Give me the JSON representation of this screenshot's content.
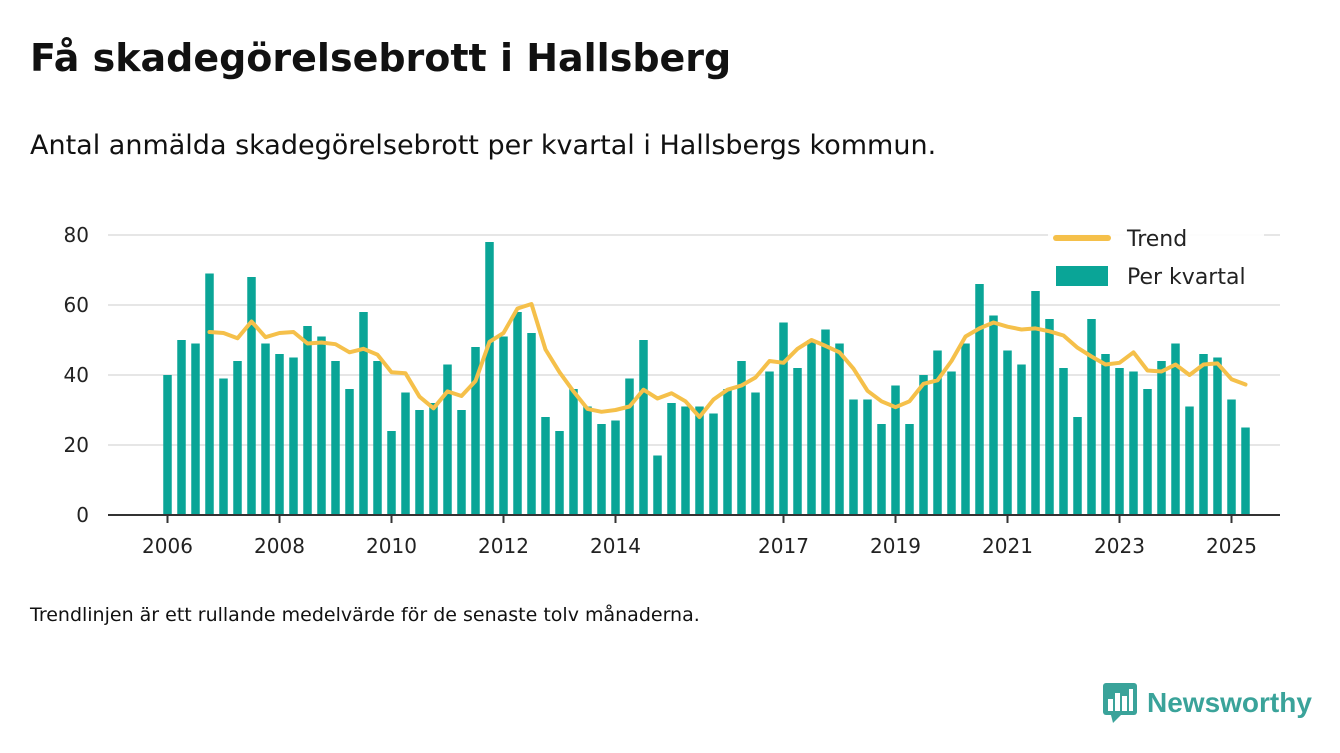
{
  "title": "Få skadegörelsebrott i Hallsberg",
  "subtitle": "Antal anmälda skadegörelsebrott per kvartal i Hallsbergs kommun.",
  "footnote": "Trendlinjen är ett rullande medelvärde för de senaste tolv månaderna.",
  "brand": {
    "name": "Newsworthy",
    "icon": "newsworthy-logo-icon",
    "color": "#3aa39a"
  },
  "chart_data": {
    "type": "bar",
    "title": "",
    "xlabel": "",
    "ylabel": "",
    "ylim": [
      0,
      80
    ],
    "yticks": [
      0,
      20,
      40,
      60,
      80
    ],
    "grid": true,
    "legend_position": "top-right",
    "x_ticks": [
      {
        "label": "2006",
        "index": 0
      },
      {
        "label": "2008",
        "index": 8
      },
      {
        "label": "2010",
        "index": 16
      },
      {
        "label": "2012",
        "index": 24
      },
      {
        "label": "2014",
        "index": 32
      },
      {
        "label": "2017",
        "index": 44
      },
      {
        "label": "2019",
        "index": 52
      },
      {
        "label": "2021",
        "index": 60
      },
      {
        "label": "2023",
        "index": 68
      },
      {
        "label": "2025",
        "index": 76
      }
    ],
    "colors": {
      "bars": "#0aa597",
      "trend": "#f5c04a",
      "grid": "#dddddd",
      "axis": "#333333"
    },
    "series": [
      {
        "name": "Per kvartal",
        "type": "bar",
        "values": [
          40,
          50,
          49,
          69,
          39,
          44,
          68,
          49,
          46,
          45,
          54,
          51,
          44,
          36,
          58,
          44,
          24,
          35,
          30,
          32,
          43,
          30,
          48,
          78,
          51,
          58,
          52,
          28,
          24,
          36,
          31,
          26,
          27,
          39,
          50,
          17,
          32,
          31,
          31,
          29,
          36,
          44,
          35,
          41,
          55,
          42,
          50,
          53,
          49,
          33,
          33,
          26,
          37,
          26,
          40,
          47,
          41,
          49,
          66,
          57,
          47,
          43,
          64,
          56,
          42,
          28,
          56,
          46,
          42,
          41,
          36,
          44,
          49,
          31,
          46,
          45,
          33,
          25
        ]
      },
      {
        "name": "Trend",
        "type": "line",
        "start_index": 3,
        "values": [
          52.3,
          52,
          50.5,
          55.3,
          50.8,
          52,
          52.3,
          49,
          49.3,
          48.8,
          46.5,
          47.5,
          45.8,
          40.8,
          40.5,
          33.8,
          30.5,
          35.3,
          34,
          38.3,
          49.5,
          52,
          59,
          60.3,
          47.3,
          40.8,
          35.3,
          30.3,
          29.5,
          30,
          31,
          35.8,
          33.3,
          34.8,
          32.5,
          28,
          33,
          35.8,
          37,
          39.3,
          44,
          43.5,
          47.5,
          50,
          48.3,
          46.5,
          41.8,
          35.5,
          32.5,
          30.8,
          32.5,
          37.5,
          38.5,
          44,
          51,
          53.3,
          55,
          53.8,
          53,
          53.3,
          52.5,
          51.3,
          47.8,
          45.3,
          43,
          43.5,
          46.5,
          41.3,
          41,
          43,
          40,
          43,
          43.3,
          38.8,
          37.3
        ]
      }
    ]
  }
}
